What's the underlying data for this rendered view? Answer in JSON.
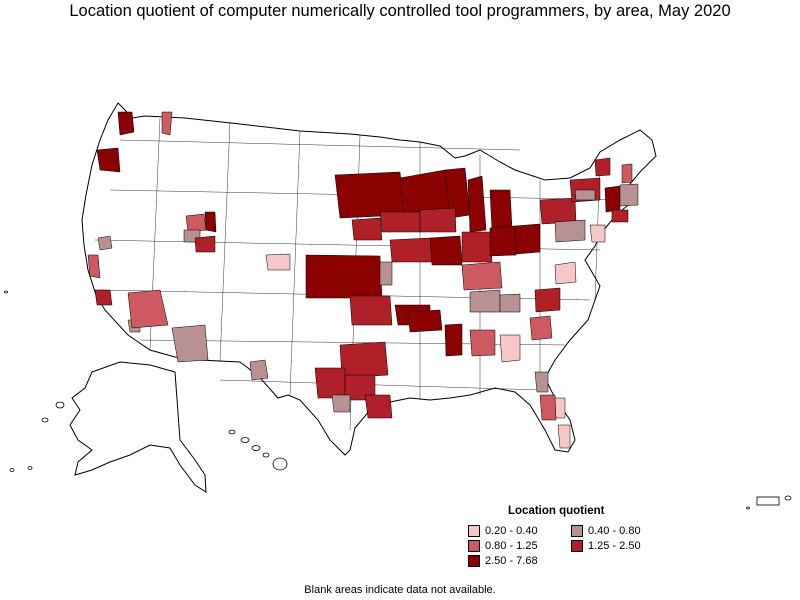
{
  "title": "Location quotient of computer numerically controlled tool programmers, by area, May 2020",
  "legend": {
    "title": "Location quotient",
    "items": [
      {
        "label": "0.20 - 0.40",
        "color": "#f7c6c9"
      },
      {
        "label": "0.40 - 0.80",
        "color": "#b89193"
      },
      {
        "label": "0.80 - 1.25",
        "color": "#cd5a60"
      },
      {
        "label": "1.25 - 2.50",
        "color": "#b02028"
      },
      {
        "label": "2.50 - 7.68",
        "color": "#8b0000"
      }
    ]
  },
  "footnote": "Blank areas indicate data not available.",
  "colors": {
    "outline": "#000000",
    "blank": "#ffffff",
    "very_low": "#f7c6c9",
    "low": "#b89193",
    "mid": "#cd5a60",
    "high": "#b02028",
    "very_high": "#8b0000"
  }
}
